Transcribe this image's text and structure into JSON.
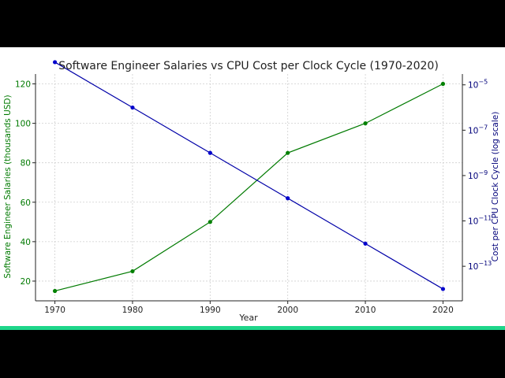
{
  "chart_data": {
    "type": "line",
    "title": "Software Engineer Salaries vs CPU Cost per Clock Cycle (1970-2020)",
    "xlabel": "Year",
    "x": [
      1970,
      1980,
      1990,
      2000,
      2010,
      2020
    ],
    "xlim": [
      1967.5,
      2022.5
    ],
    "grid": true,
    "left_axis": {
      "label": "Software Engineer Salaries (thousands USD)",
      "scale": "linear",
      "ylim": [
        10,
        125
      ],
      "ticks": [
        20,
        40,
        60,
        80,
        100,
        120
      ],
      "color": "#007a00"
    },
    "right_axis": {
      "label": "Cost per CPU Clock Cycle (log scale)",
      "scale": "log",
      "ylim": [
        3e-15,
        3e-05
      ],
      "ticks": [
        1e-05,
        1e-07,
        1e-09,
        1e-11,
        1e-13
      ],
      "tick_exponents": [
        "−5",
        "−7",
        "−9",
        "−11",
        "−13"
      ],
      "tick_base": "10",
      "color": "#00007a"
    },
    "series": [
      {
        "axis": "left",
        "color": "#007a00",
        "marker_color": "#008000",
        "values": [
          15,
          25,
          50,
          85,
          100,
          120
        ]
      },
      {
        "axis": "right",
        "color": "#0000a8",
        "marker_color": "#0000cc",
        "values": [
          0.0001,
          1e-06,
          1e-08,
          1e-10,
          1e-12,
          1e-14
        ]
      }
    ]
  }
}
